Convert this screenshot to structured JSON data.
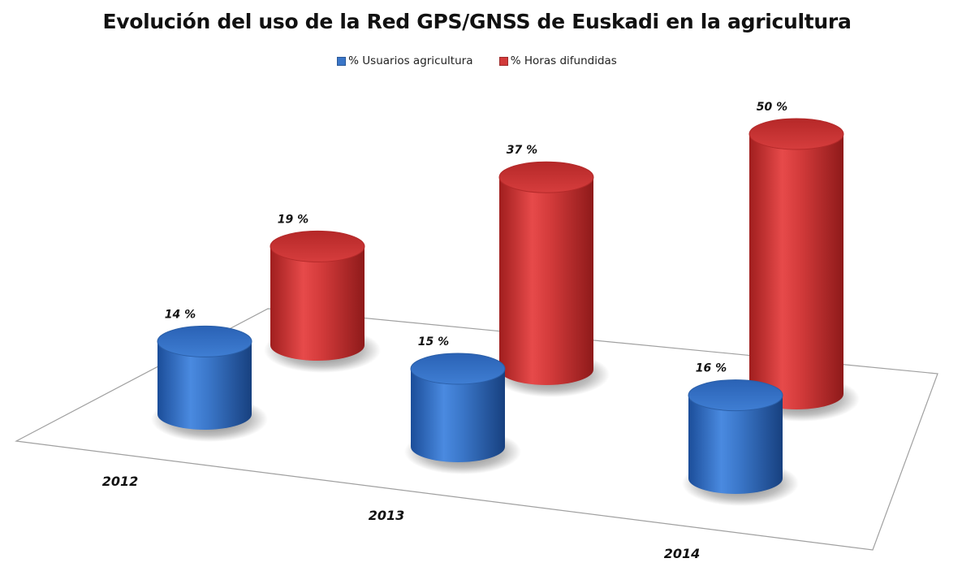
{
  "chart_data": {
    "type": "bar",
    "title": "Evolución del uso de la Red GPS/GNSS de Euskadi en la agricultura",
    "categories": [
      "2012",
      "2013",
      "2014"
    ],
    "series": [
      {
        "name": "% Usuarios agricultura",
        "values": [
          14,
          15,
          16
        ],
        "labels": [
          "14 %",
          "15 %",
          "16 %"
        ],
        "color": "#3a76c8"
      },
      {
        "name": "% Horas difundidas",
        "values": [
          19,
          37,
          50
        ],
        "labels": [
          "19 %",
          "37 %",
          "50 %"
        ],
        "color": "#d23a3a"
      }
    ],
    "xlabel": "",
    "ylabel": "",
    "ylim": [
      0,
      50
    ],
    "grid": false,
    "legend": "top",
    "style": "3d-cylinder"
  }
}
